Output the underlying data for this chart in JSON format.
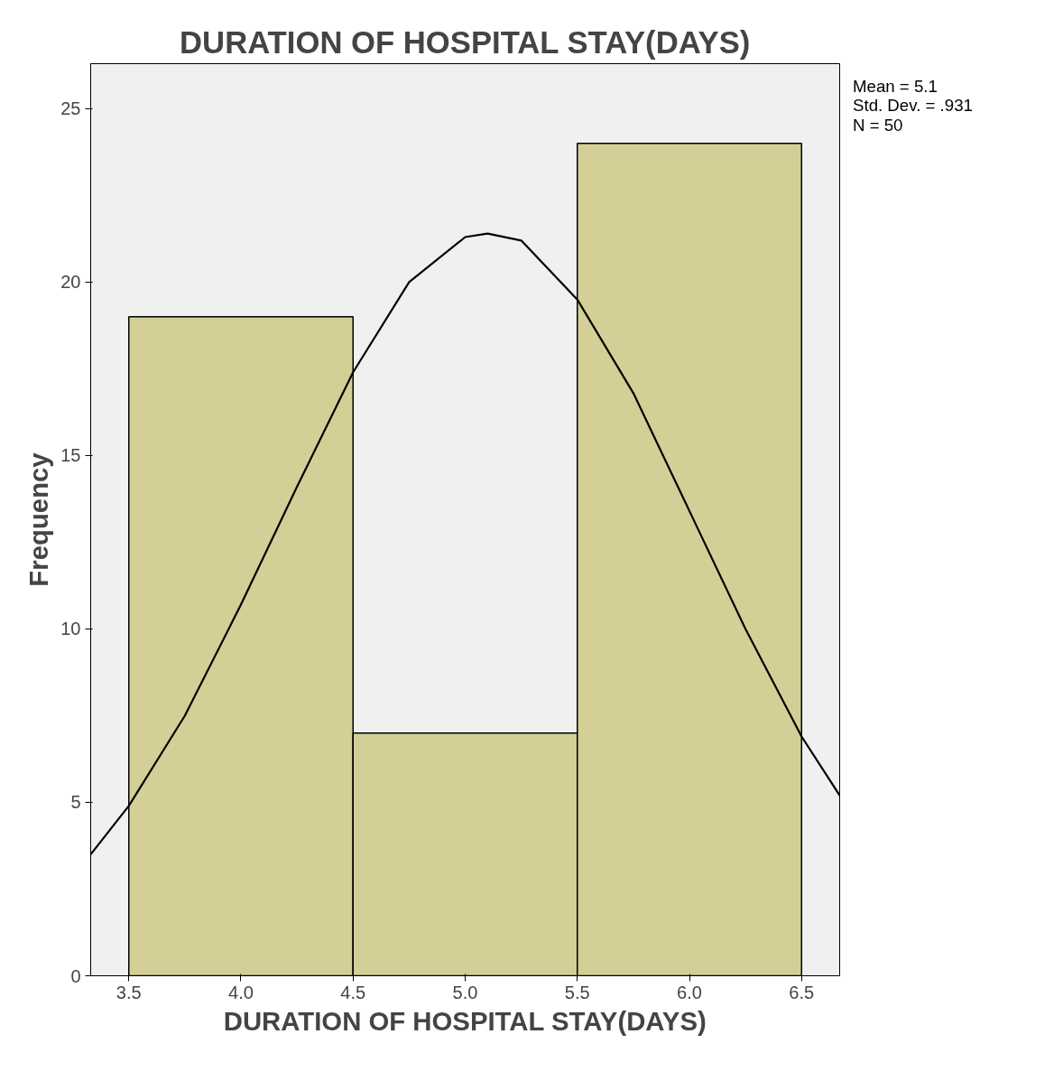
{
  "chart_data": {
    "type": "histogram",
    "title": "DURATION OF HOSPITAL STAY(DAYS)",
    "xlabel": "DURATION OF HOSPITAL STAY(DAYS)",
    "ylabel": "Frequency",
    "bins": [
      3.5,
      4.5,
      5.5,
      6.5
    ],
    "values": [
      19,
      7,
      24
    ],
    "color": "#d3cf97",
    "series": [
      {
        "type": "line",
        "color": "#000000",
        "x": [
          3.33,
          3.5,
          3.75,
          4.0,
          4.25,
          4.5,
          4.75,
          5.0,
          5.1,
          5.25,
          5.5,
          5.75,
          6.0,
          6.25,
          6.5,
          6.67
        ],
        "values": [
          3.5,
          4.9,
          7.5,
          10.7,
          14.1,
          17.4,
          20.0,
          21.3,
          21.4,
          21.2,
          19.5,
          16.8,
          13.4,
          10.0,
          6.9,
          5.2
        ]
      }
    ],
    "xlim": [
      3.33,
      6.67
    ],
    "ylim": [
      0,
      26.3
    ],
    "xticks": [
      3.5,
      {
        "value": 4,
        "label": "4.0"
      },
      4.5,
      {
        "value": 5,
        "label": "5.0"
      },
      5.5,
      {
        "value": 6,
        "label": "6.0"
      },
      6.5
    ],
    "yticks": [
      0,
      5,
      10,
      15,
      20,
      25
    ],
    "grid": false,
    "annotations": [
      "Mean = 5.1",
      "Std. Dev. = .931",
      "N = 50"
    ]
  }
}
